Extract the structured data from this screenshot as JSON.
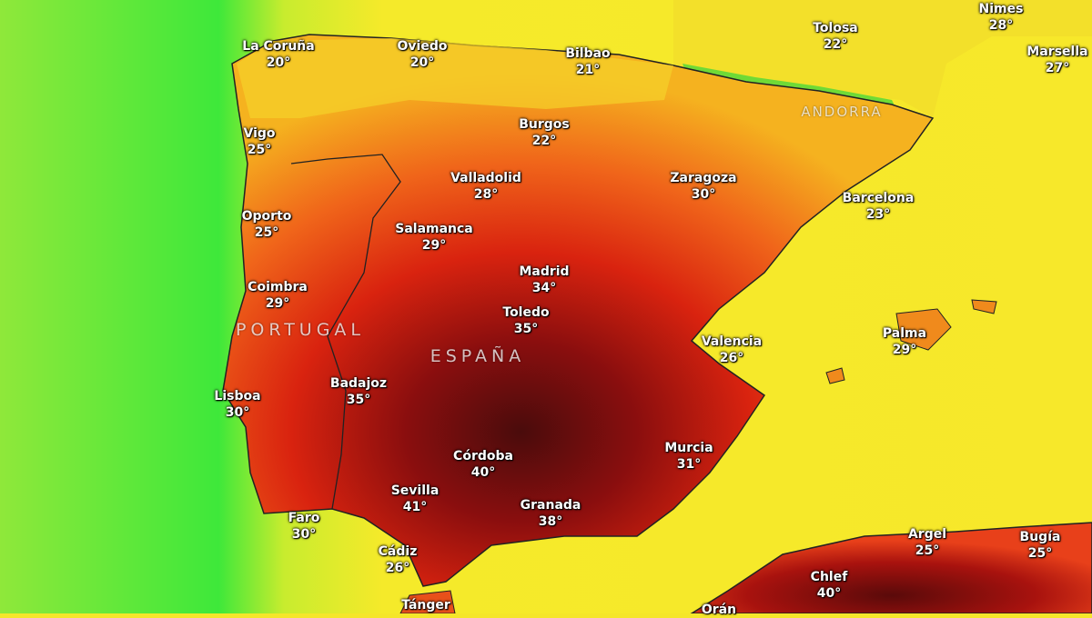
{
  "map": {
    "type": "temperature heat map",
    "colors": {
      "cool": "#3ee83a",
      "mild": "#f5ea2a",
      "warm": "#f39a1c",
      "hot": "#d9230f",
      "extreme": "#5a0a0a"
    },
    "regions": [
      {
        "label": "PORTUGAL"
      },
      {
        "label": "ESPAÑA"
      },
      {
        "label": "ANDORRA"
      }
    ],
    "cities": [
      {
        "name": "La Coruña",
        "temp": "20°"
      },
      {
        "name": "Oviedo",
        "temp": "20°"
      },
      {
        "name": "Bilbao",
        "temp": "21°"
      },
      {
        "name": "Tolosa",
        "temp": "22°"
      },
      {
        "name": "Nimes",
        "temp": "28°"
      },
      {
        "name": "Marsella",
        "temp": "27°"
      },
      {
        "name": "Vigo",
        "temp": "25°"
      },
      {
        "name": "Burgos",
        "temp": "22°"
      },
      {
        "name": "Valladolid",
        "temp": "28°"
      },
      {
        "name": "Zaragoza",
        "temp": "30°"
      },
      {
        "name": "Barcelona",
        "temp": "23°"
      },
      {
        "name": "Oporto",
        "temp": "25°"
      },
      {
        "name": "Salamanca",
        "temp": "29°"
      },
      {
        "name": "Madrid",
        "temp": "34°"
      },
      {
        "name": "Coimbra",
        "temp": "29°"
      },
      {
        "name": "Toledo",
        "temp": "35°"
      },
      {
        "name": "Valencia",
        "temp": "26°"
      },
      {
        "name": "Palma",
        "temp": "29°"
      },
      {
        "name": "Badajoz",
        "temp": "35°"
      },
      {
        "name": "Lisboa",
        "temp": "30°"
      },
      {
        "name": "Córdoba",
        "temp": "40°"
      },
      {
        "name": "Murcia",
        "temp": "31°"
      },
      {
        "name": "Sevilla",
        "temp": "41°"
      },
      {
        "name": "Granada",
        "temp": "38°"
      },
      {
        "name": "Faro",
        "temp": "30°"
      },
      {
        "name": "Cádiz",
        "temp": "26°"
      },
      {
        "name": "Argel",
        "temp": "25°"
      },
      {
        "name": "Bugía",
        "temp": "25°"
      },
      {
        "name": "Chlef",
        "temp": "40°"
      },
      {
        "name": "Tánger",
        "temp": ""
      },
      {
        "name": "Orán",
        "temp": ""
      }
    ]
  }
}
